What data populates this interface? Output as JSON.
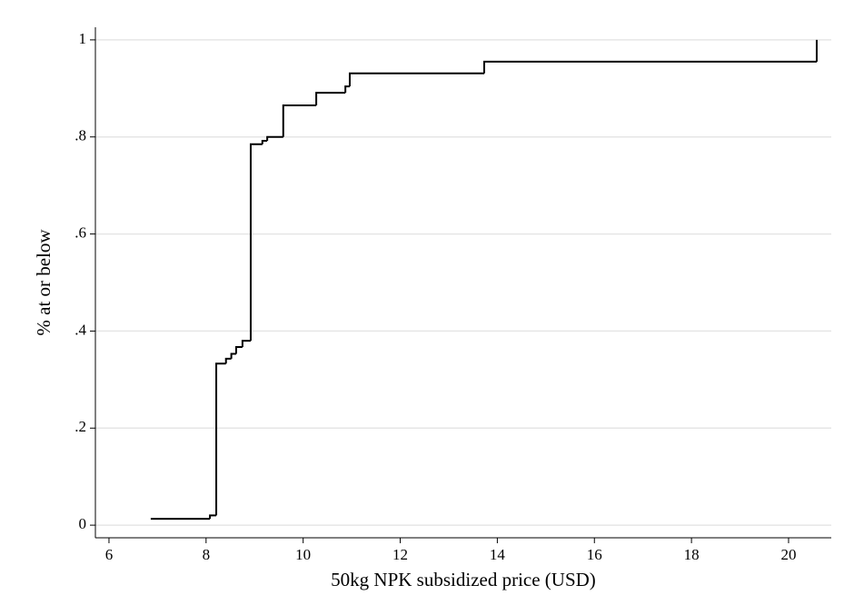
{
  "chart_data": {
    "type": "line",
    "step": "post",
    "x_label": "50kg NPK subsidized price (USD)",
    "y_label": "% at or below",
    "color": "#000000",
    "grid": true,
    "x": [
      6.86,
      8.08,
      8.21,
      8.41,
      8.52,
      8.62,
      8.75,
      8.92,
      9.16,
      9.26,
      9.59,
      10.27,
      10.87,
      10.96,
      13.73,
      20.58
    ],
    "values": [
      0.013,
      0.02,
      0.333,
      0.343,
      0.353,
      0.367,
      0.38,
      0.785,
      0.792,
      0.8,
      0.865,
      0.891,
      0.904,
      0.931,
      0.955,
      1
    ],
    "xlim": [
      5.72,
      20.88
    ],
    "xticks": [
      6,
      8,
      10,
      12,
      14,
      16,
      18,
      20
    ],
    "ylim": [
      -0.026,
      1.026
    ],
    "yticks": [
      0,
      {
        "value": 0.2,
        "label": ".2"
      },
      {
        "value": 0.4,
        "label": ".4"
      },
      {
        "value": 0.6,
        "label": ".6"
      },
      {
        "value": 0.8,
        "label": ".8"
      },
      1
    ]
  }
}
